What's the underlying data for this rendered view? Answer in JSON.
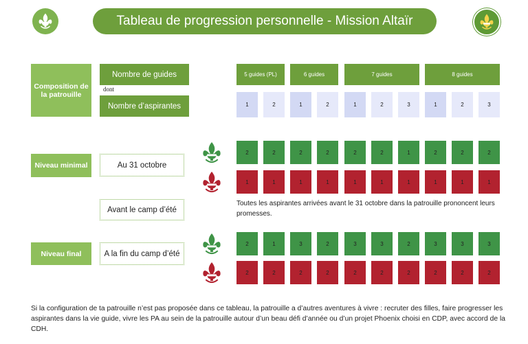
{
  "header": {
    "title": "Tableau de progression personnelle - Mission Altaïr"
  },
  "composition": {
    "label": "Composition de la patrouille",
    "guides_label": "Nombre de guides",
    "dont": "dont",
    "aspirantes_label": "Nombre d’aspirantes",
    "groups": [
      {
        "label": "5 guides (PL)",
        "aspirantes": [
          1,
          2
        ]
      },
      {
        "label": "6 guides",
        "aspirantes": [
          1,
          2
        ]
      },
      {
        "label": "7 guides",
        "aspirantes": [
          1,
          2,
          3
        ]
      },
      {
        "label": "8 guides",
        "aspirantes": [
          1,
          2,
          3
        ]
      }
    ]
  },
  "niveau_minimal": {
    "label": "Niveau minimal",
    "moment": "Au 31 octobre",
    "green_row": [
      2,
      2,
      2,
      2,
      2,
      2,
      1,
      2,
      2,
      2
    ],
    "red_row": [
      1,
      1,
      1,
      1,
      1,
      1,
      1,
      1,
      1,
      1
    ]
  },
  "avant_camp": {
    "moment": "Avant le camp d’été",
    "note": "Toutes les aspirantes arrivées avant le 31 octobre dans la patrouille prononcent leurs promesses."
  },
  "niveau_final": {
    "label": "Niveau final",
    "moment": "A la fin du camp d’été",
    "green_row": [
      2,
      1,
      3,
      2,
      3,
      3,
      2,
      3,
      3,
      3
    ],
    "red_row": [
      2,
      2,
      2,
      2,
      2,
      2,
      2,
      2,
      2,
      2
    ]
  },
  "footer": "Si la configuration de ta patrouille n’est pas proposée dans ce tableau, la patrouille a d’autres aventures à vivre : recruter des filles, faire progresser les aspirantes dans la vie guide, vivre les PA au sein de la patrouille autour d’un beau défi d’année ou d’un projet Phoenix choisi en CDP, avec accord de la CDH."
}
